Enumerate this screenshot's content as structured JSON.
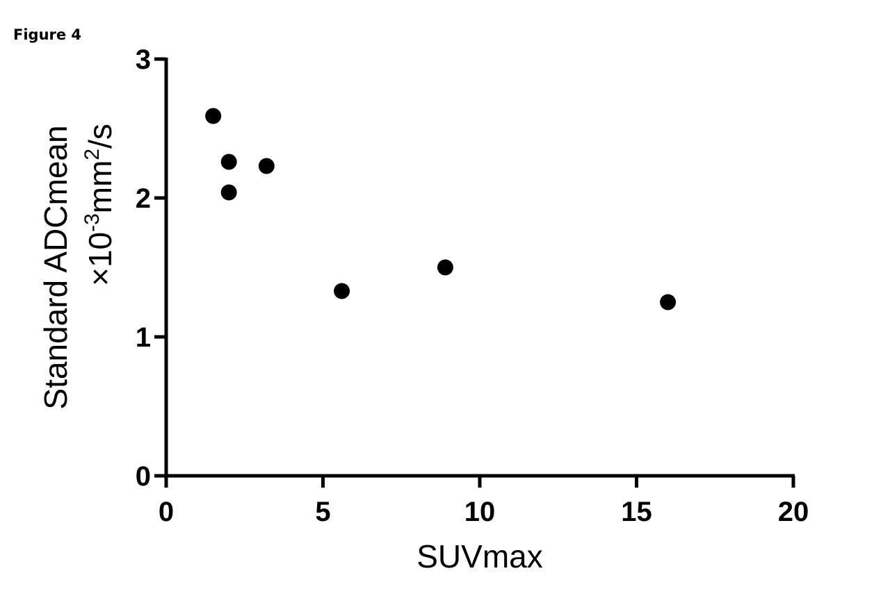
{
  "figure_label": "Figure 4",
  "chart_data": {
    "type": "scatter",
    "xlabel": "SUVmax",
    "ylabel_line1": "Standard ADCmean",
    "ylabel_line2": {
      "prefix": "×10",
      "exp1": "-3",
      "middle": "mm",
      "exp2": "2",
      "suffix": "/s"
    },
    "xlim": [
      0,
      20
    ],
    "ylim": [
      0,
      3
    ],
    "x_ticks": [
      0,
      5,
      10,
      15,
      20
    ],
    "y_ticks": [
      0,
      1,
      2,
      3
    ],
    "grid": false,
    "points": [
      {
        "x": 1.5,
        "y": 2.59
      },
      {
        "x": 2.0,
        "y": 2.26
      },
      {
        "x": 2.0,
        "y": 2.04
      },
      {
        "x": 3.2,
        "y": 2.23
      },
      {
        "x": 5.6,
        "y": 1.33
      },
      {
        "x": 8.9,
        "y": 1.5
      },
      {
        "x": 16.0,
        "y": 1.25
      }
    ],
    "marker_color": "#000000"
  }
}
